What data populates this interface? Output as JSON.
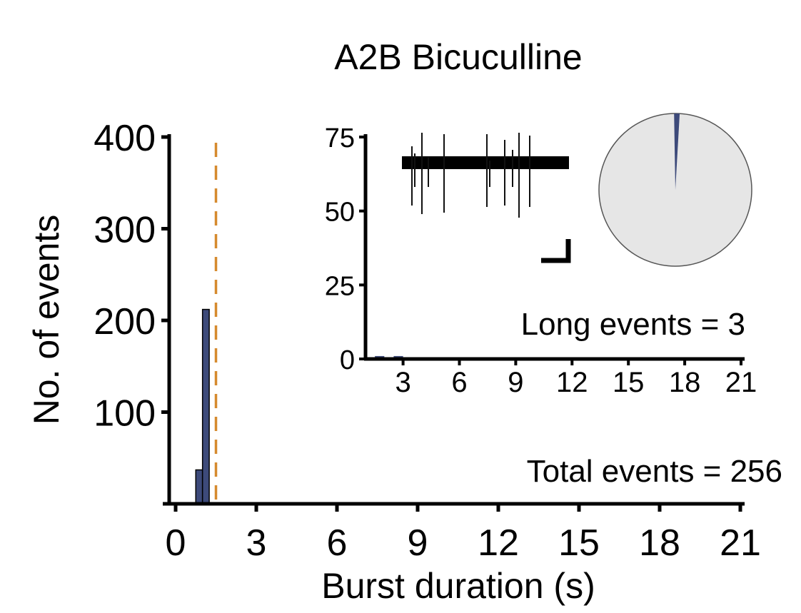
{
  "chart_data": [
    {
      "type": "bar",
      "title": "A2B Bicuculline",
      "xlabel": "Burst duration (s)",
      "ylabel": "No. of events",
      "xlim": [
        0,
        21
      ],
      "ylim": [
        0,
        400
      ],
      "x_ticks": [
        0,
        3,
        6,
        9,
        12,
        15,
        18,
        21
      ],
      "y_ticks": [
        100,
        200,
        300,
        400
      ],
      "x_tick_labels": [
        "0",
        "3",
        "6",
        "9",
        "12",
        "15",
        "18",
        "21"
      ],
      "y_tick_labels": [
        "100",
        "200",
        "300",
        "400"
      ],
      "bars": [
        {
          "x_start": 0.75,
          "x_end": 1.0,
          "value": 37
        },
        {
          "x_start": 1.0,
          "x_end": 1.25,
          "value": 212
        }
      ],
      "threshold_line": {
        "x": 1.5,
        "style": "dashed",
        "color": "#d68a2e"
      },
      "annotation": "Total events = 256",
      "bar_color": "#3d4a7a",
      "grid": false
    },
    {
      "type": "bar",
      "inset": true,
      "xlim": [
        1,
        21
      ],
      "ylim": [
        0,
        75
      ],
      "x_ticks": [
        3,
        6,
        9,
        12,
        15,
        18,
        21
      ],
      "y_ticks": [
        0,
        25,
        50,
        75
      ],
      "x_tick_labels": [
        "3",
        "6",
        "9",
        "12",
        "15",
        "18",
        "21"
      ],
      "y_tick_labels": [
        "0",
        "25",
        "50",
        "75"
      ],
      "bars": [
        {
          "x_start": 1.5,
          "x_end": 2.0,
          "value": 0.5
        },
        {
          "x_start": 2.5,
          "x_end": 3.0,
          "value": 0.5
        }
      ],
      "annotation": "Long events = 3"
    },
    {
      "type": "pie",
      "values": [
        3,
        253
      ],
      "colors": [
        "#3d4a7a",
        "#e6e6e6"
      ],
      "start_angle_deg": 0
    }
  ]
}
